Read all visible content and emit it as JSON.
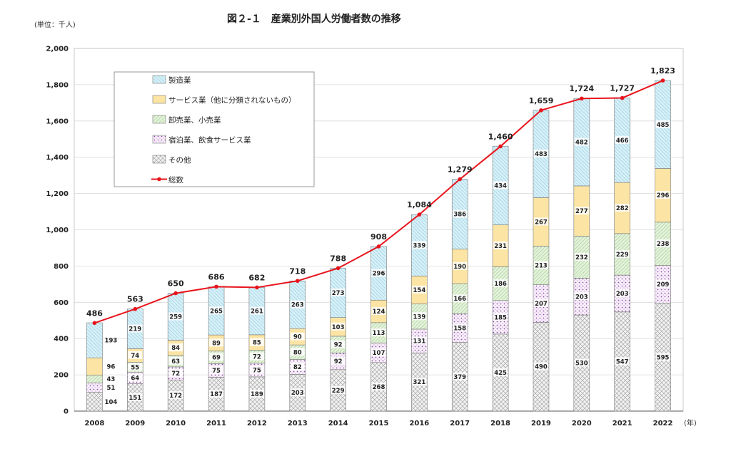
{
  "chart_data": {
    "type": "bar",
    "title": "図２-１　産業別外国人労働者数の推移",
    "unit_label": "(単位：千人)",
    "x_unit_label": "(年)",
    "categories": [
      "2008",
      "2009",
      "2010",
      "2011",
      "2012",
      "2013",
      "2014",
      "2015",
      "2016",
      "2017",
      "2018",
      "2019",
      "2020",
      "2021",
      "2022"
    ],
    "ylim": [
      0,
      2000
    ],
    "y_ticks": [
      "0",
      "200",
      "400",
      "600",
      "800",
      "1,000",
      "1,200",
      "1,400",
      "1,600",
      "1,800",
      "2,000"
    ],
    "stacked": true,
    "grid": true,
    "legend_position": "top-left",
    "series": [
      {
        "name": "その他",
        "color": "#e8e8e8",
        "pattern": "crosshatch",
        "values": [
          104,
          151,
          172,
          187,
          189,
          203,
          229,
          268,
          321,
          379,
          425,
          490,
          530,
          547,
          595
        ]
      },
      {
        "name": "宿泊業、飲食サービス業",
        "color": "#f4e8f8",
        "pattern": "dots-purple",
        "values": [
          51,
          64,
          72,
          75,
          75,
          82,
          92,
          107,
          131,
          158,
          185,
          207,
          203,
          203,
          209
        ]
      },
      {
        "name": "卸売業、小売業",
        "color": "#dff0d6",
        "pattern": "hatch-green",
        "values": [
          43,
          55,
          63,
          69,
          72,
          80,
          92,
          113,
          139,
          166,
          186,
          213,
          232,
          229,
          238
        ]
      },
      {
        "name": "サービス業（他に分類されないもの）",
        "color": "#fbe3a1",
        "pattern": "solid-yellow",
        "values": [
          96,
          74,
          84,
          89,
          85,
          90,
          103,
          124,
          154,
          190,
          231,
          267,
          277,
          282,
          296
        ]
      },
      {
        "name": "製造業",
        "color": "#d2eef7",
        "pattern": "hatch-blue",
        "values": [
          193,
          219,
          259,
          265,
          261,
          263,
          273,
          296,
          339,
          386,
          434,
          483,
          482,
          466,
          485
        ]
      }
    ],
    "total_series": {
      "name": "総数",
      "color": "#e8141c",
      "values": [
        486,
        563,
        650,
        686,
        682,
        718,
        788,
        908,
        1084,
        1279,
        1460,
        1659,
        1724,
        1727,
        1823
      ],
      "labels": [
        "486",
        "563",
        "650",
        "686",
        "682",
        "718",
        "788",
        "908",
        "1,084",
        "1,279",
        "1,460",
        "1,659",
        "1,724",
        "1,727",
        "1,823"
      ]
    },
    "legend_order": [
      "製造業",
      "サービス業（他に分類されないもの）",
      "卸売業、小売業",
      "宿泊業、飲食サービス業",
      "その他",
      "総数"
    ]
  }
}
